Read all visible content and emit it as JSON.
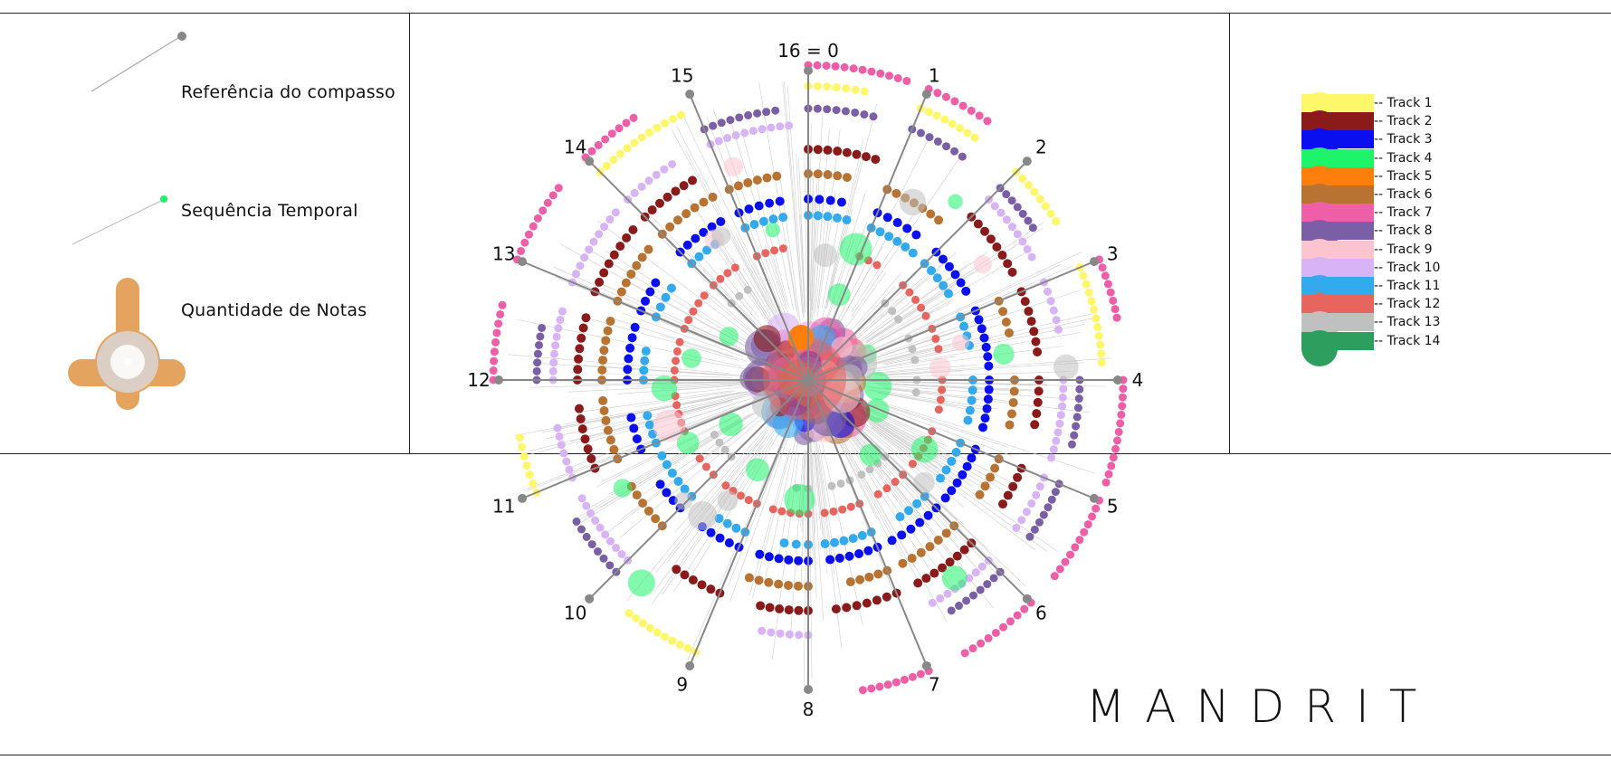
{
  "brand": "MANDRIT",
  "reference": {
    "compass_label": "Referência do compasso",
    "temporal_label": "Sequência Temporal",
    "notes_label": "Quantidade de Notas"
  },
  "spokes": [
    "16 = 0",
    "1",
    "2",
    "3",
    "4",
    "5",
    "6",
    "7",
    "8",
    "9",
    "10",
    "11",
    "12",
    "13",
    "14",
    "15"
  ],
  "tracks": [
    {
      "label": "-- Track 1",
      "color": "#fef76a"
    },
    {
      "label": "-- Track 2",
      "color": "#8b1a1a"
    },
    {
      "label": "-- Track 3",
      "color": "#0a0ff0"
    },
    {
      "label": "-- Track 4",
      "color": "#1ef46a"
    },
    {
      "label": "-- Track 5",
      "color": "#ff7f0e"
    },
    {
      "label": "-- Track 6",
      "color": "#b87333"
    },
    {
      "label": "-- Track 7",
      "color": "#ee5fa7"
    },
    {
      "label": "-- Track 8",
      "color": "#7a5fa7"
    },
    {
      "label": "-- Track 9",
      "color": "#fcc4cf"
    },
    {
      "label": "-- Track 10",
      "color": "#d8b3f5"
    },
    {
      "label": "-- Track 11",
      "color": "#33aaee"
    },
    {
      "label": "-- Track 12",
      "color": "#e8655f"
    },
    {
      "label": "-- Track 13",
      "color": "#c0c0c0"
    },
    {
      "label": "-- Track 14",
      "color": "#2e9e5e"
    }
  ],
  "colors": {
    "spoke": "#888888",
    "notes_glyph": "#e4a460",
    "temporal_dot": "#1ef46a"
  }
}
